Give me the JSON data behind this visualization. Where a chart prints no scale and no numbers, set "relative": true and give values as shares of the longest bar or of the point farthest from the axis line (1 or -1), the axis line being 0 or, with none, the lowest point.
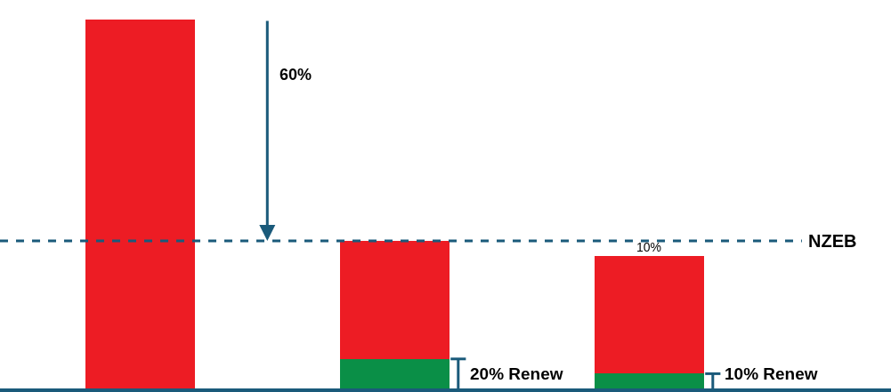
{
  "chart_data": {
    "type": "bar",
    "relative": true,
    "stacked": true,
    "categories": [
      null,
      null,
      null
    ],
    "series": [
      {
        "color": "#0a8f47",
        "values": [
          0,
          0.08,
          0.04
        ]
      },
      {
        "color": "#ed1c24",
        "values": [
          1,
          0.32,
          0.32
        ]
      }
    ],
    "ref_lines": [
      {
        "axis": "y",
        "value": 0.4,
        "label": "NZEB",
        "color": "#1a5a7a",
        "line_style": "dashed"
      }
    ],
    "annotations": [
      "60%",
      "10%",
      "20% Renew",
      "10% Renew"
    ]
  }
}
